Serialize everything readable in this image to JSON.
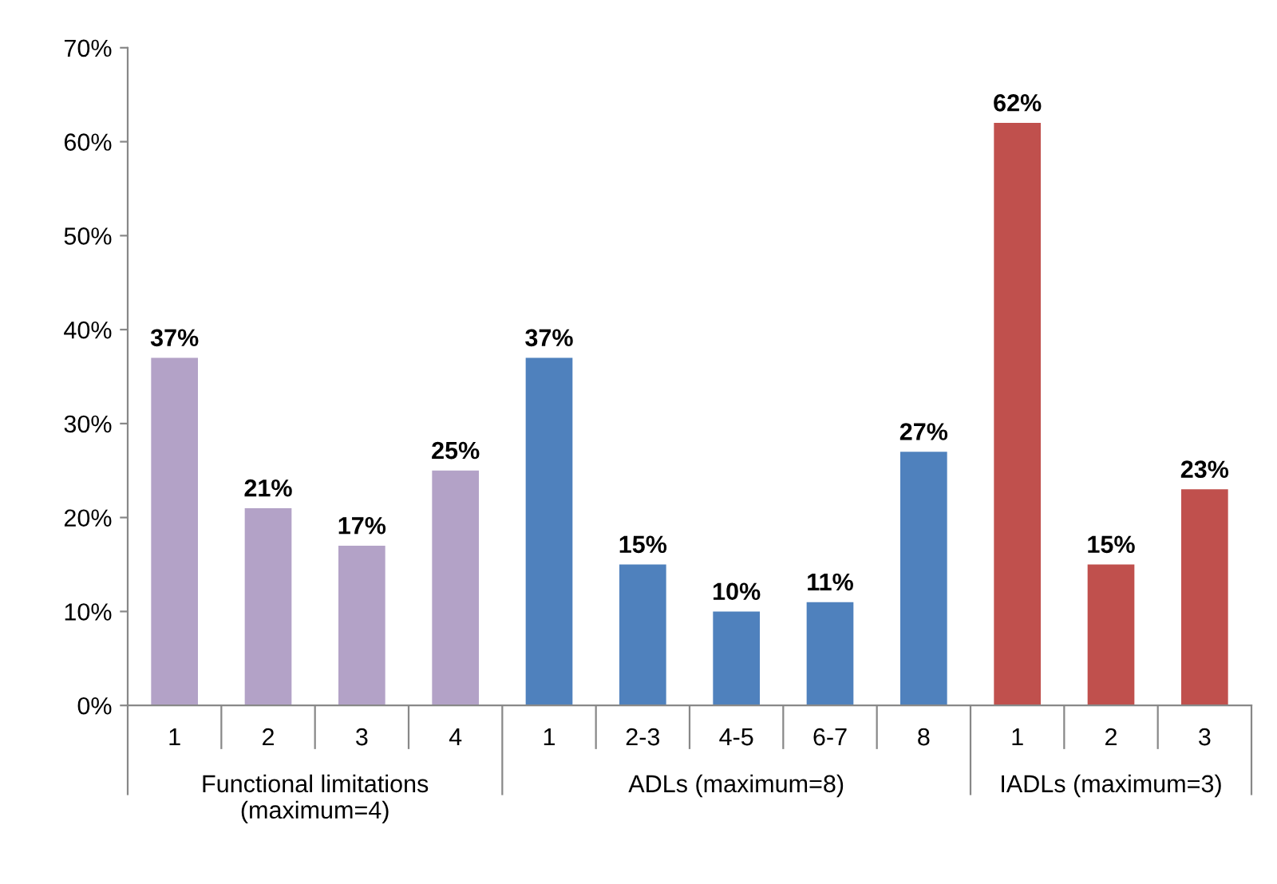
{
  "chart_data": {
    "type": "bar",
    "categories": [
      "1",
      "2",
      "3",
      "4",
      "1",
      "2-3",
      "4-5",
      "6-7",
      "8",
      "1",
      "2",
      "3"
    ],
    "values": [
      37,
      21,
      17,
      25,
      37,
      15,
      10,
      11,
      27,
      62,
      15,
      23
    ],
    "colors": [
      "#b3a2c7",
      "#b3a2c7",
      "#b3a2c7",
      "#b3a2c7",
      "#4f81bd",
      "#4f81bd",
      "#4f81bd",
      "#4f81bd",
      "#4f81bd",
      "#c0504d",
      "#c0504d",
      "#c0504d"
    ],
    "data_labels": true,
    "value_labels": [
      "37%",
      "21%",
      "17%",
      "25%",
      "37%",
      "15%",
      "10%",
      "11%",
      "27%",
      "62%",
      "15%",
      "23%"
    ],
    "ylim": [
      0,
      70
    ],
    "yticks": [
      {
        "value": 0,
        "label": "0%"
      },
      {
        "value": 10,
        "label": "10%"
      },
      {
        "value": 20,
        "label": "20%"
      },
      {
        "value": 30,
        "label": "30%"
      },
      {
        "value": 40,
        "label": "40%"
      },
      {
        "value": 50,
        "label": "50%"
      },
      {
        "value": 60,
        "label": "60%"
      },
      {
        "value": 70,
        "label": "70%"
      }
    ],
    "grid": false,
    "legend": false,
    "annotations": [
      "Functional limitations\n(maximum=4)",
      "ADLs (maximum=8)",
      "IADLs (maximum=3)"
    ]
  }
}
